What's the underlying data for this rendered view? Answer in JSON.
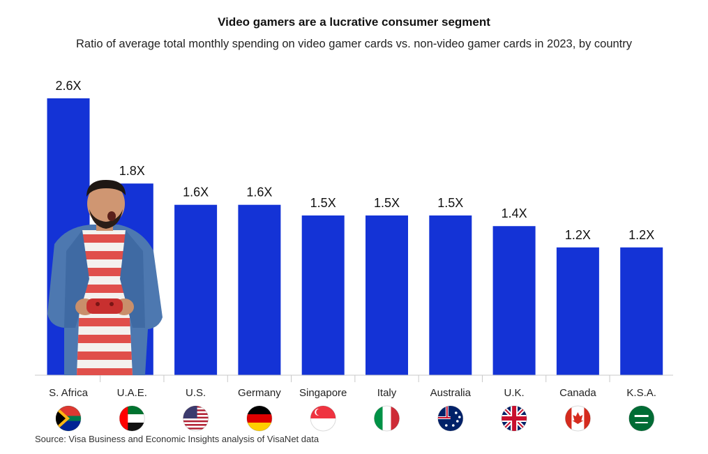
{
  "title": "Video gamers are a lucrative consumer segment",
  "subtitle": "Ratio of average total monthly spending on video gamer cards vs. non-video gamer cards in 2023, by country",
  "source": "Source: Visa Business and Economic Insights analysis of VisaNet data",
  "chart_data": {
    "type": "bar",
    "categories": [
      "S. Africa",
      "U.A.E.",
      "U.S.",
      "Germany",
      "Singapore",
      "Italy",
      "Australia",
      "U.K.",
      "Canada",
      "K.S.A."
    ],
    "values": [
      2.6,
      1.8,
      1.6,
      1.6,
      1.5,
      1.5,
      1.5,
      1.4,
      1.2,
      1.2
    ],
    "labels": [
      "2.6X",
      "1.8X",
      "1.6X",
      "1.6X",
      "1.5X",
      "1.5X",
      "1.5X",
      "1.4X",
      "1.2X",
      "1.2X"
    ],
    "ylim": [
      0,
      2.6
    ],
    "bar_color": "#1433d6",
    "xlabel": "",
    "ylabel": "",
    "legend": "none"
  },
  "flags": [
    "south-africa-flag-icon",
    "uae-flag-icon",
    "us-flag-icon",
    "germany-flag-icon",
    "singapore-flag-icon",
    "italy-flag-icon",
    "australia-flag-icon",
    "uk-flag-icon",
    "canada-flag-icon",
    "ksa-flag-icon"
  ],
  "illustration": "man-with-game-controller-photo"
}
